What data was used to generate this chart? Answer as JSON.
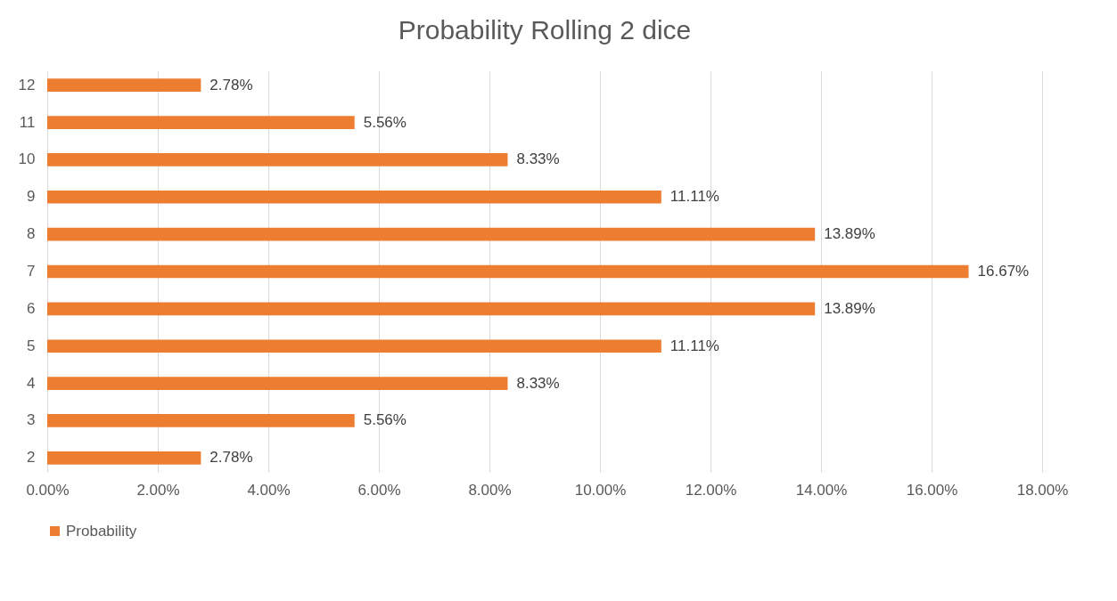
{
  "chart_data": {
    "type": "bar",
    "orientation": "horizontal",
    "title": "Probability Rolling 2 dice",
    "categories": [
      "12",
      "11",
      "10",
      "9",
      "8",
      "7",
      "6",
      "5",
      "4",
      "3",
      "2"
    ],
    "series": [
      {
        "name": "Probability",
        "color": "#ed7d31",
        "values": [
          2.78,
          5.56,
          8.33,
          11.11,
          13.89,
          16.67,
          13.89,
          11.11,
          8.33,
          5.56,
          2.78
        ],
        "value_labels": [
          "2.78%",
          "5.56%",
          "8.33%",
          "11.11%",
          "13.89%",
          "16.67%",
          "13.89%",
          "11.11%",
          "8.33%",
          "5.56%",
          "2.78%"
        ]
      }
    ],
    "xlim": [
      0,
      18
    ],
    "xticks": [
      {
        "value": 0,
        "label": "0.00%"
      },
      {
        "value": 2,
        "label": "2.00%"
      },
      {
        "value": 4,
        "label": "4.00%"
      },
      {
        "value": 6,
        "label": "6.00%"
      },
      {
        "value": 8,
        "label": "8.00%"
      },
      {
        "value": 10,
        "label": "10.00%"
      },
      {
        "value": 12,
        "label": "12.00%"
      },
      {
        "value": 14,
        "label": "14.00%"
      },
      {
        "value": 16,
        "label": "16.00%"
      },
      {
        "value": 18,
        "label": "18.00%"
      }
    ],
    "grid": "x",
    "legend": "bottom"
  }
}
